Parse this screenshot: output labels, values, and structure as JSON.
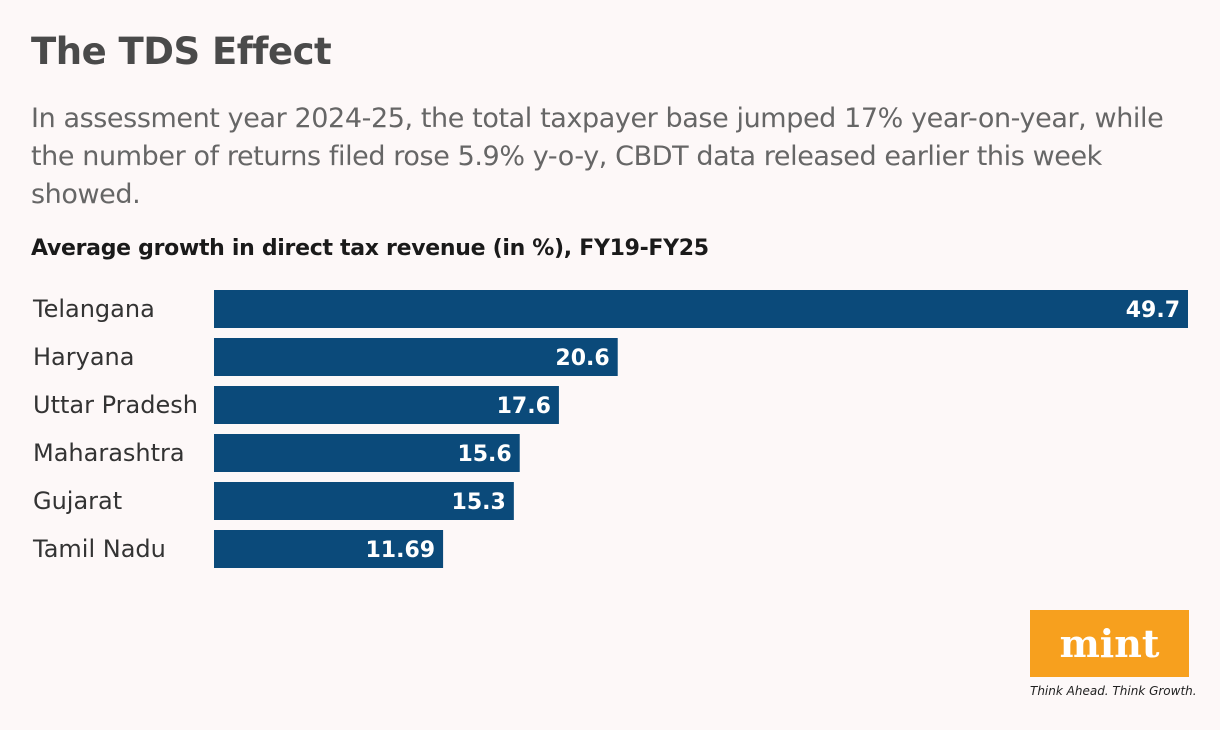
{
  "header": {
    "title": "The TDS Effect",
    "subtitle": "In assessment year 2024-25, the total taxpayer base jumped 17% year-on-year, while the number of returns filed rose 5.9% y-o-y, CBDT data released earlier this week showed."
  },
  "chart_data": {
    "type": "bar",
    "orientation": "horizontal",
    "title": "Average growth in direct tax revenue (in %), FY19-FY25",
    "categories": [
      "Telangana",
      "Haryana",
      "Uttar Pradesh",
      "Maharashtra",
      "Gujarat",
      "Tamil Nadu"
    ],
    "values": [
      49.7,
      20.6,
      17.6,
      15.6,
      15.3,
      11.69
    ],
    "labels": [
      "49.7",
      "20.6",
      "17.6",
      "15.6",
      "15.3",
      "11.69"
    ],
    "xlim": [
      0,
      49.7
    ],
    "grid": false,
    "bar_color": "#0b4a7a"
  },
  "branding": {
    "logo": "mint",
    "tagline": "Think Ahead. Think Growth.",
    "logo_color": "#f7a01e"
  }
}
